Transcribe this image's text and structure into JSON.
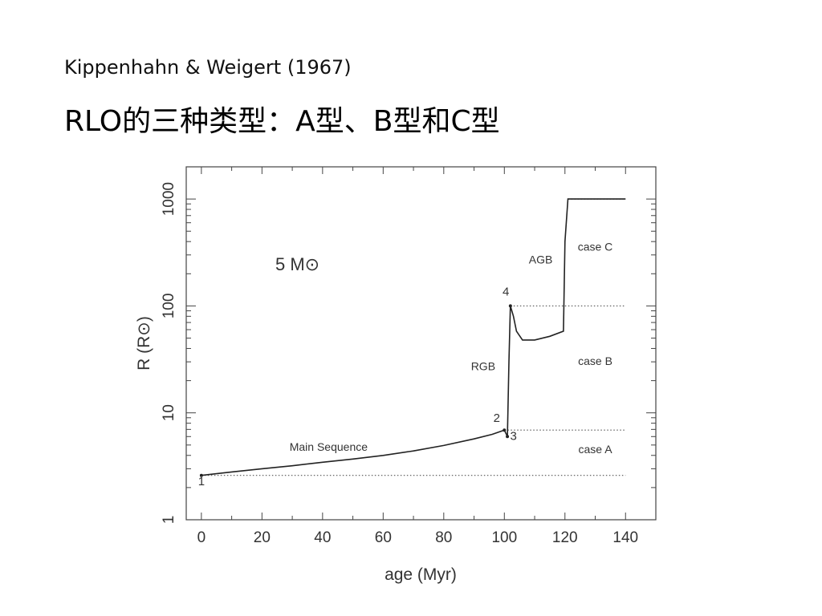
{
  "slide": {
    "title": "Kippenhahn & Weigert  (1967)",
    "subtitle": "RLO的三种类型：A型、B型和C型"
  },
  "chart_data": {
    "type": "line",
    "xlabel": "age  (Myr)",
    "ylabel": "R  (R⊙)",
    "xlim": [
      -5,
      150
    ],
    "ylim": [
      1,
      2000
    ],
    "yscale": "log",
    "x_ticks": [
      0,
      20,
      40,
      60,
      80,
      100,
      120,
      140
    ],
    "y_ticks": [
      1,
      10,
      100,
      1000
    ],
    "mass_label": "5 M⊙",
    "series": [
      {
        "points": [
          [
            0,
            2.6
          ],
          [
            10,
            2.8
          ],
          [
            20,
            3.0
          ],
          [
            30,
            3.2
          ],
          [
            40,
            3.45
          ],
          [
            50,
            3.7
          ],
          [
            60,
            4.0
          ],
          [
            70,
            4.4
          ],
          [
            80,
            4.95
          ],
          [
            90,
            5.7
          ],
          [
            96,
            6.3
          ],
          [
            100,
            6.9
          ],
          [
            101,
            6.0
          ],
          [
            101.5,
            30
          ],
          [
            102,
            100
          ],
          [
            103,
            80
          ],
          [
            104,
            58
          ],
          [
            106,
            48
          ],
          [
            110,
            48
          ],
          [
            115,
            52
          ],
          [
            119.5,
            58
          ],
          [
            120,
            400
          ],
          [
            121,
            1000
          ],
          [
            140,
            1000
          ]
        ]
      }
    ],
    "thresholds": [
      {
        "y": 2.6,
        "x0": 0,
        "x1": 140
      },
      {
        "y": 6.9,
        "x0": 100,
        "x1": 140
      },
      {
        "y": 100,
        "x0": 102,
        "x1": 140
      },
      {
        "y": 1000,
        "x0": 121,
        "x1": 140
      }
    ],
    "annotations": [
      {
        "text": "1",
        "x": 0,
        "y": 2.1
      },
      {
        "text": "2",
        "x": 97.5,
        "y": 8.2
      },
      {
        "text": "3",
        "x": 103,
        "y": 5.6
      },
      {
        "text": "4",
        "x": 100.5,
        "y": 125
      },
      {
        "text": "Main Sequence",
        "x": 42,
        "y": 4.4
      },
      {
        "text": "RGB",
        "x": 93,
        "y": 25
      },
      {
        "text": "AGB",
        "x": 112,
        "y": 250
      },
      {
        "text": "case C",
        "x": 130,
        "y": 330
      },
      {
        "text": "case B",
        "x": 130,
        "y": 28
      },
      {
        "text": "case A",
        "x": 130,
        "y": 4.2
      }
    ]
  }
}
